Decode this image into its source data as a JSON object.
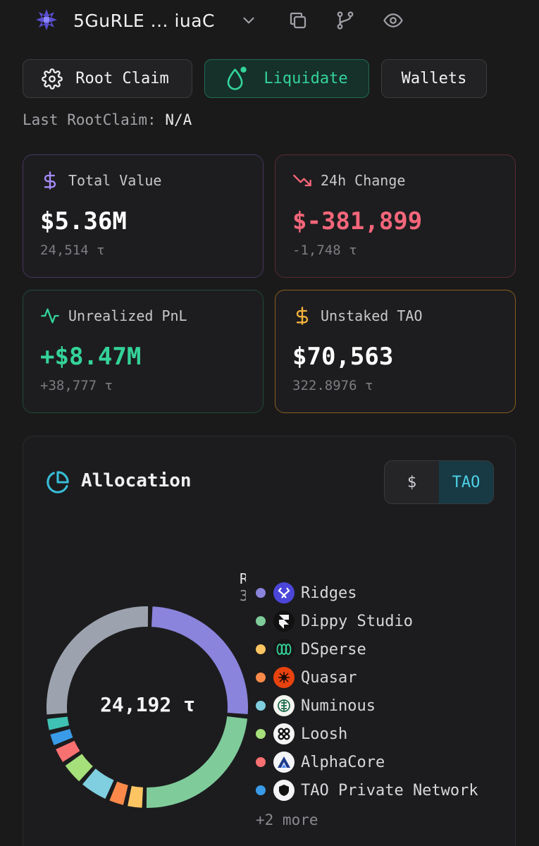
{
  "header": {
    "wallet_address": "5GuRLE ... iuaC",
    "icons": [
      "subnet-logo-icon",
      "chevron-down-icon",
      "copy-icon",
      "fork-icon",
      "eye-icon"
    ]
  },
  "actions": {
    "root_claim": "Root Claim",
    "liquidate": "Liquidate",
    "wallets": "Wallets"
  },
  "last_rootclaim": {
    "label": "Last RootClaim:",
    "value": "N/A"
  },
  "cards": {
    "total_value": {
      "label": "Total Value",
      "value": "$5.36M",
      "sub": "24,514 τ",
      "color": "#a78bfa"
    },
    "change_24h": {
      "label": "24h Change",
      "value": "$-381,899",
      "sub": "-1,748 τ",
      "color": "#f4667a"
    },
    "unrealized_pnl": {
      "label": "Unrealized PnL",
      "value": "+$8.47M",
      "sub": "+38,777 τ",
      "color": "#34d399"
    },
    "unstaked_tao": {
      "label": "Unstaked TAO",
      "value": "$70,563",
      "sub": "322.8976 τ",
      "color": "#f5b33d"
    }
  },
  "allocation": {
    "title": "Allocation",
    "toggle": {
      "usd": "$",
      "tao": "TAO",
      "active": "TAO"
    },
    "total": "24,192 τ",
    "clipped_label": {
      "name": "R",
      "value": "3"
    },
    "more": "+2 more",
    "legend": [
      {
        "name": "Ridges",
        "color": "#8b84dc"
      },
      {
        "name": "Dippy Studio",
        "color": "#7fcc9a"
      },
      {
        "name": "DSperse",
        "color": "#fcc562"
      },
      {
        "name": "Quasar",
        "color": "#fb8a4a"
      },
      {
        "name": "Numinous",
        "color": "#7fcfe0"
      },
      {
        "name": "Loosh",
        "color": "#a6e07a"
      },
      {
        "name": "AlphaCore",
        "color": "#f87171"
      },
      {
        "name": "TAO Private Network",
        "color": "#3a9be8"
      }
    ]
  },
  "chart_data": {
    "type": "pie",
    "categories": [
      "Ridges",
      "Dippy Studio",
      "DSperse",
      "Quasar",
      "Numinous",
      "Loosh",
      "AlphaCore",
      "TAO Private Network",
      "+2 more (teal)",
      "+2 more (grey)"
    ],
    "values": [
      26,
      24,
      3,
      3,
      5,
      4,
      3,
      2.5,
      2.5,
      27
    ],
    "colors": [
      "#8b84dc",
      "#7fcc9a",
      "#fcc562",
      "#fb8a4a",
      "#7fcfe0",
      "#a6e07a",
      "#f87171",
      "#3a9be8",
      "#3fc2b3",
      "#9ca3af"
    ],
    "center_label": "24,192 τ"
  }
}
